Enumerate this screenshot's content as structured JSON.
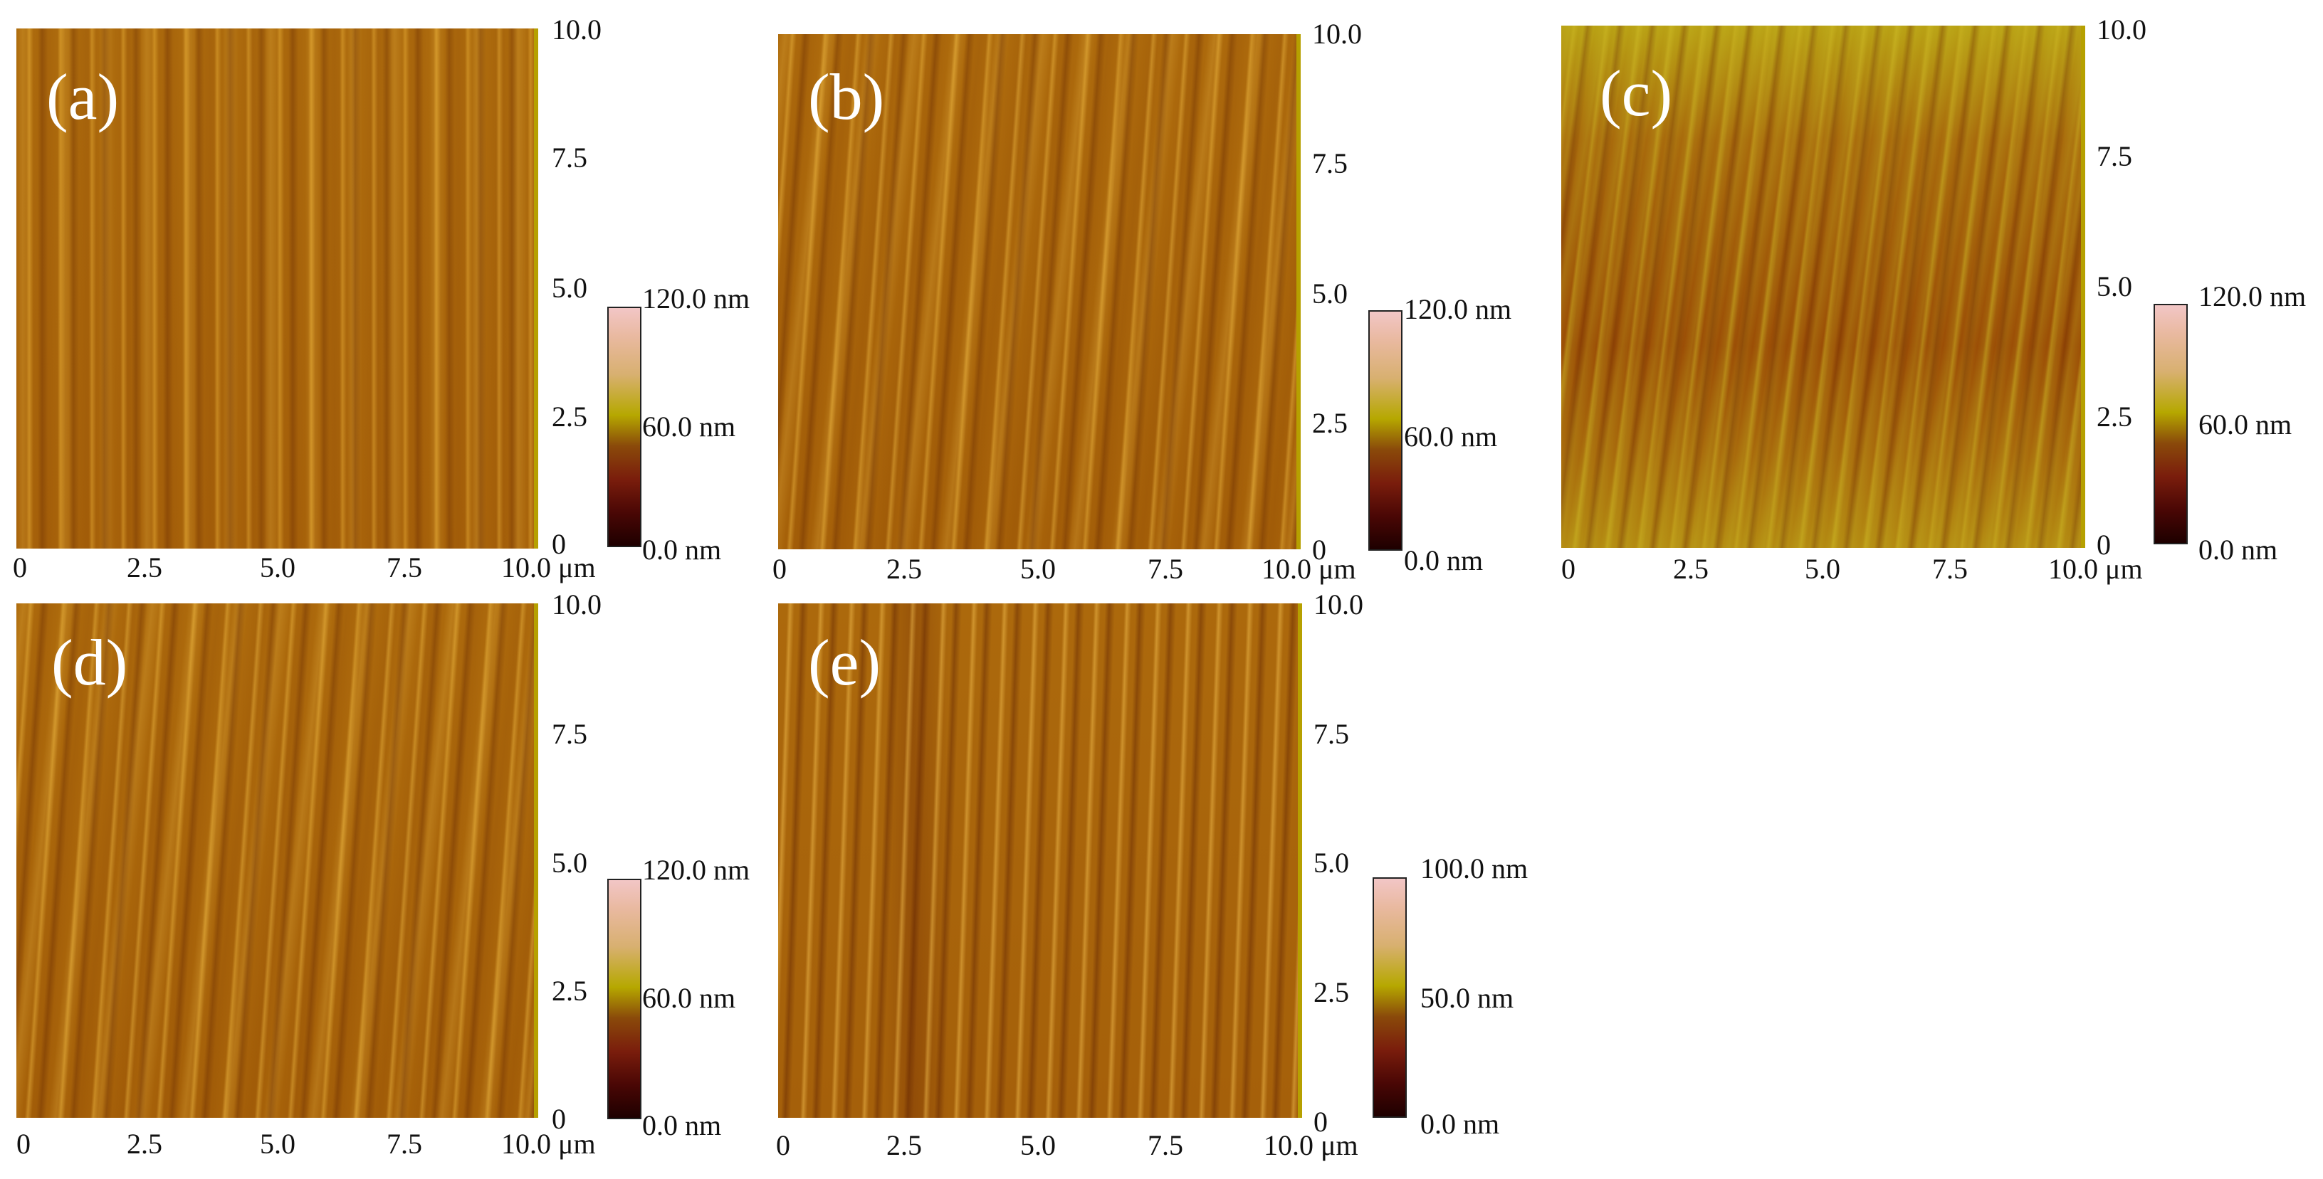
{
  "panels": [
    {
      "label": "(a)",
      "cbar_top": "120.0 nm",
      "cbar_mid": "60.0 nm",
      "cbar_bottom": "0.0 nm"
    },
    {
      "label": "(b)",
      "cbar_top": "120.0 nm",
      "cbar_mid": "60.0 nm",
      "cbar_bottom": "0.0 nm"
    },
    {
      "label": "(c)",
      "cbar_top": "120.0 nm",
      "cbar_mid": "60.0 nm",
      "cbar_bottom": "0.0 nm"
    },
    {
      "label": "(d)",
      "cbar_top": "120.0 nm",
      "cbar_mid": "60.0 nm",
      "cbar_bottom": "0.0 nm"
    },
    {
      "label": "(e)",
      "cbar_top": "100.0 nm",
      "cbar_mid": "50.0 nm",
      "cbar_bottom": "0.0 nm"
    }
  ],
  "axis": {
    "x_ticks": [
      "0",
      "2.5",
      "5.0",
      "7.5",
      "10.0 μm"
    ],
    "y_ticks": [
      "10.0",
      "7.5",
      "5.0",
      "2.5",
      "0"
    ]
  },
  "colors": {
    "surface_base": "#a8650b",
    "stripe_light": "#e0a640",
    "stripe_dark": "#7a3a02",
    "axis_line": "#b6a000"
  }
}
